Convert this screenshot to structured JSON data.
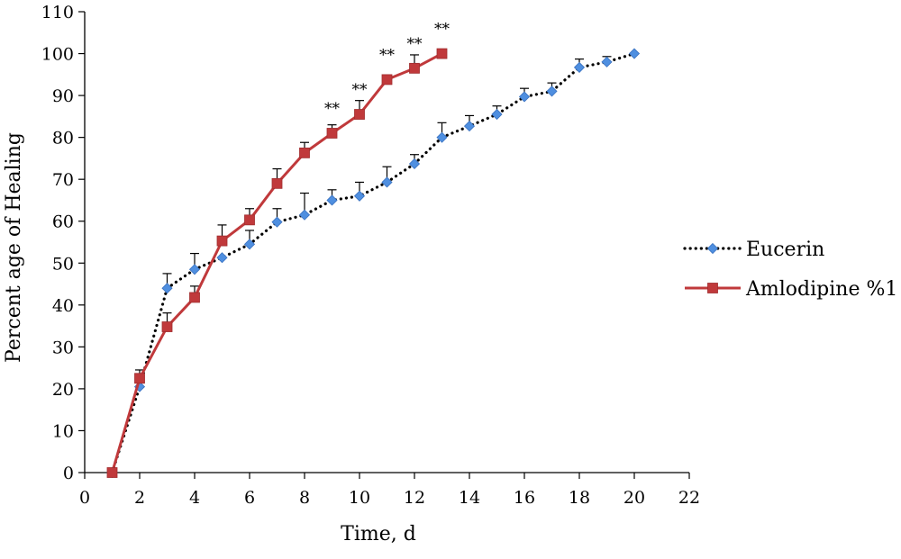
{
  "chart_data": {
    "type": "line",
    "title": "",
    "xlabel": "Time, d",
    "ylabel": "Percent age of Healing",
    "xlim": [
      0,
      22
    ],
    "ylim": [
      0,
      110
    ],
    "x_ticks": [
      "0",
      "2",
      "4",
      "6",
      "8",
      "10",
      "12",
      "14",
      "16",
      "18",
      "20",
      "22"
    ],
    "y_ticks": [
      "0",
      "10",
      "20",
      "30",
      "40",
      "50",
      "60",
      "70",
      "80",
      "90",
      "100",
      "110"
    ],
    "grid": false,
    "legend_position": "right",
    "series": [
      {
        "name": "Eucerin",
        "color": "#4F8FE0",
        "line_style": "dotted",
        "line_color": "#000000",
        "marker": "diamond",
        "x": [
          1,
          2,
          3,
          4,
          5,
          6,
          7,
          8,
          9,
          10,
          11,
          12,
          13,
          14,
          15,
          16,
          17,
          18,
          19,
          20
        ],
        "y": [
          0,
          20.5,
          44,
          48.5,
          51.3,
          54.5,
          59.8,
          61.5,
          65,
          66,
          69.3,
          73.7,
          80,
          82.7,
          85.5,
          89.7,
          91,
          96.7,
          98,
          100
        ],
        "error_upper": [
          0,
          0,
          3.5,
          3.8,
          0,
          3.3,
          3.2,
          5.2,
          2.5,
          3.3,
          3.7,
          2.2,
          3.5,
          2.5,
          2,
          2,
          2,
          2,
          1.3,
          0
        ]
      },
      {
        "name": "Amlodipine %1",
        "color": "#C0393B",
        "line_style": "solid",
        "line_color": "#C0393B",
        "marker": "square",
        "x": [
          1,
          2,
          3,
          4,
          5,
          6,
          7,
          8,
          9,
          10,
          11,
          12,
          13
        ],
        "y": [
          0,
          22.5,
          34.8,
          41.8,
          55.3,
          60.3,
          69,
          76.3,
          81,
          85.5,
          93.8,
          96.5,
          100
        ],
        "error_upper": [
          0,
          2,
          3.3,
          2.7,
          3.8,
          2.7,
          3.5,
          2.5,
          2,
          3.3,
          0,
          3.2,
          0
        ]
      }
    ],
    "annotations": [
      {
        "text": "**",
        "x": 9,
        "y": 81
      },
      {
        "text": "**",
        "x": 10,
        "y": 85.5
      },
      {
        "text": "**",
        "x": 11,
        "y": 93.8
      },
      {
        "text": "**",
        "x": 12,
        "y": 96.5
      },
      {
        "text": "**",
        "x": 13,
        "y": 100
      }
    ]
  }
}
